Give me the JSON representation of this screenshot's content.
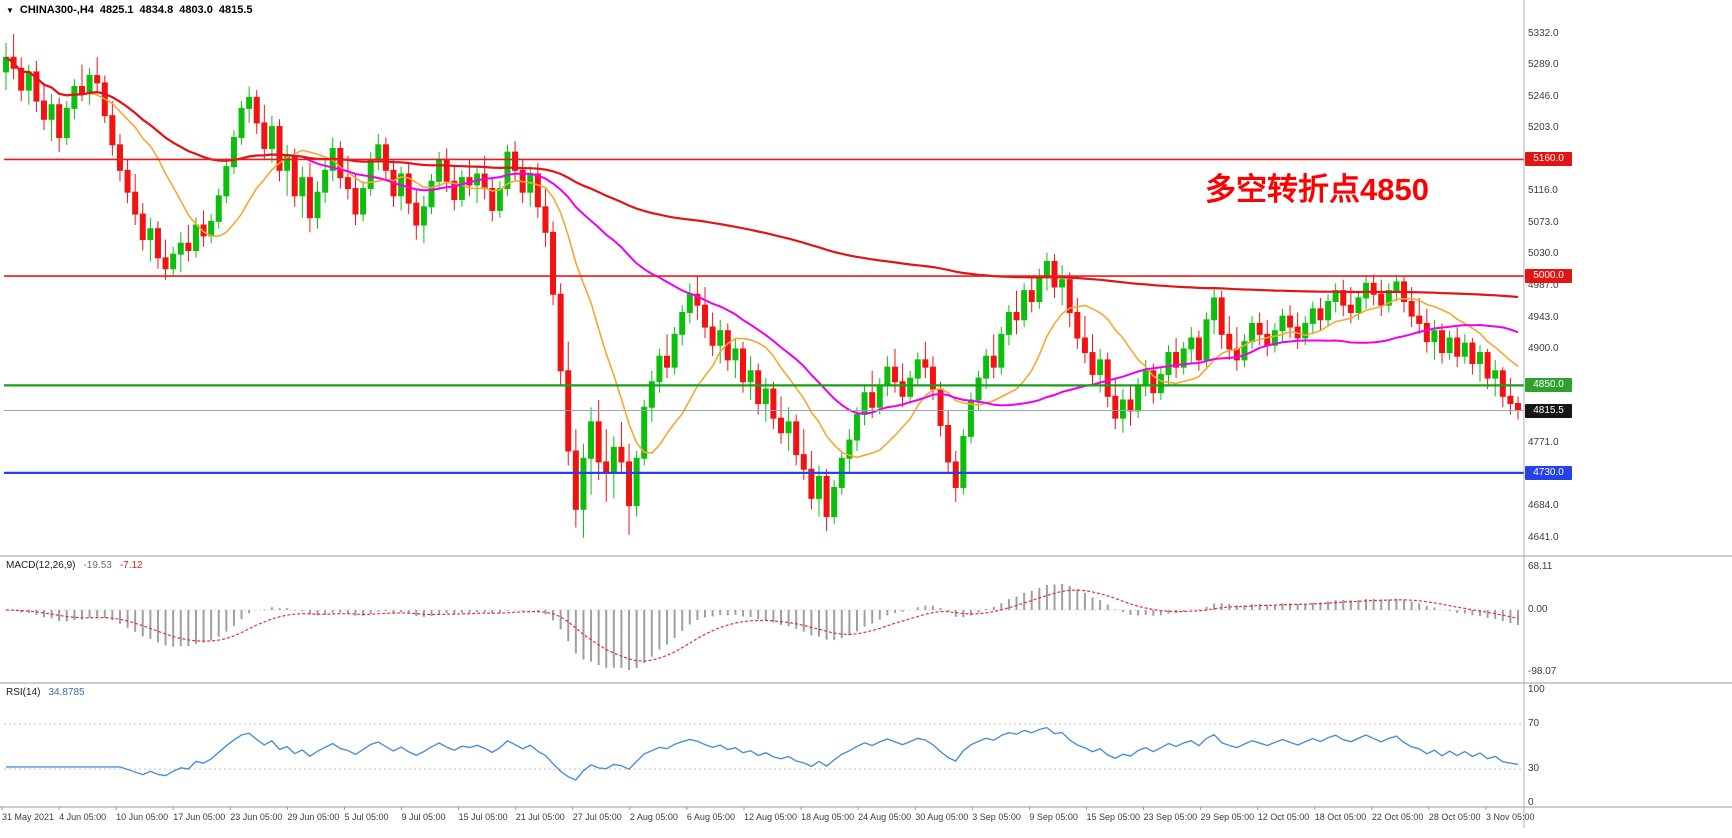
{
  "header": {
    "symbol": "CHINA300-,H4",
    "open": "4825.1",
    "high": "4834.8",
    "low": "4803.0",
    "close": "4815.5"
  },
  "annotation": {
    "text": "多空转折点4850",
    "color": "#FF0000"
  },
  "price_axis": {
    "labels": [
      {
        "text": "5332.0",
        "price": 5332.0
      },
      {
        "text": "5289.0",
        "price": 5289.0
      },
      {
        "text": "5246.0",
        "price": 5246.0
      },
      {
        "text": "5203.0",
        "price": 5203.0
      },
      {
        "text": "5116.0",
        "price": 5116.0
      },
      {
        "text": "5073.0",
        "price": 5073.0
      },
      {
        "text": "5030.0",
        "price": 5030.0
      },
      {
        "text": "4987.0",
        "price": 4987.0
      },
      {
        "text": "4943.0",
        "price": 4943.0
      },
      {
        "text": "4900.0",
        "price": 4900.0
      },
      {
        "text": "4771.0",
        "price": 4771.0
      },
      {
        "text": "4684.0",
        "price": 4684.0
      },
      {
        "text": "4641.0",
        "price": 4641.0
      }
    ],
    "badges": [
      {
        "text": "5160.0",
        "price": 5160.0,
        "bg": "#E21414"
      },
      {
        "text": "5000.0",
        "price": 5000.0,
        "bg": "#E21414"
      },
      {
        "text": "4850.0",
        "price": 4850.0,
        "bg": "#2FA12F"
      },
      {
        "text": "4815.5",
        "price": 4815.5,
        "bg": "#161616"
      },
      {
        "text": "4730.0",
        "price": 4730.0,
        "bg": "#2442E8"
      }
    ]
  },
  "hlines": [
    {
      "price": 5160.0,
      "color": "#F01818",
      "width": 1.6,
      "name": "resistance-line-5160"
    },
    {
      "price": 5000.0,
      "color": "#F01818",
      "width": 1.6,
      "name": "resistance-line-5000"
    },
    {
      "price": 4850.0,
      "color": "#18A018",
      "width": 2.2,
      "name": "pivot-line-4850"
    },
    {
      "price": 4730.0,
      "color": "#2442E8",
      "width": 2.2,
      "name": "support-line-4730"
    },
    {
      "price": 4815.5,
      "color": "#97A7B7",
      "width": 1,
      "name": "current-price-line"
    }
  ],
  "chart_data": {
    "type": "candlestick",
    "symbol": "CHINA300-",
    "timeframe": "H4",
    "y_range": [
      4618,
      5378
    ],
    "x_labels": [
      "31 May 2021",
      "4 Jun 05:00",
      "10 Jun 05:00",
      "17 Jun 05:00",
      "23 Jun 05:00",
      "29 Jun 05:00",
      "5 Jul 05:00",
      "9 Jul 05:00",
      "15 Jul 05:00",
      "21 Jul 05:00",
      "27 Jul 05:00",
      "2 Aug 05:00",
      "6 Aug 05:00",
      "12 Aug 05:00",
      "18 Aug 05:00",
      "24 Aug 05:00",
      "30 Aug 05:00",
      "3 Sep 05:00",
      "9 Sep 05:00",
      "15 Sep 05:00",
      "23 Sep 05:00",
      "29 Sep 05:00",
      "12 Oct 05:00",
      "18 Oct 05:00",
      "22 Oct 05:00",
      "28 Oct 05:00",
      "3 Nov 05:00"
    ],
    "up_color": "#0DBF0D",
    "down_color": "#F31212",
    "moving_averages": [
      {
        "name": "fast",
        "period": 12,
        "color": "#F5A830"
      },
      {
        "name": "medium",
        "period": 40,
        "color": "#EE00EE"
      },
      {
        "name": "slow",
        "period": 200,
        "color": "#E01616"
      }
    ],
    "indicators": [
      {
        "type": "macd",
        "label": "MACD(12,26,9)",
        "values": [
          "-19.53",
          "-7.12"
        ],
        "axis_labels": [
          "68.11",
          "0.00",
          "-98.07"
        ],
        "fast": 12,
        "slow": 26,
        "signal": 9,
        "hist_color": "#9F9F9F",
        "signal_color": "#E83030"
      },
      {
        "type": "rsi",
        "label": "RSI(14)",
        "value": "34.8785",
        "axis_labels": [
          "100",
          "70",
          "30",
          "0"
        ],
        "period": 14,
        "levels": [
          70,
          30
        ],
        "line_color": "#4A90D9"
      }
    ],
    "ohlc": [
      [
        5280,
        5320,
        5255,
        5300
      ],
      [
        5300,
        5332,
        5270,
        5285
      ],
      [
        5285,
        5300,
        5240,
        5255
      ],
      [
        5255,
        5290,
        5235,
        5280
      ],
      [
        5280,
        5295,
        5225,
        5240
      ],
      [
        5240,
        5265,
        5200,
        5215
      ],
      [
        5215,
        5250,
        5185,
        5235
      ],
      [
        5235,
        5245,
        5170,
        5190
      ],
      [
        5190,
        5240,
        5180,
        5230
      ],
      [
        5230,
        5270,
        5215,
        5260
      ],
      [
        5260,
        5290,
        5240,
        5250
      ],
      [
        5250,
        5285,
        5235,
        5275
      ],
      [
        5275,
        5300,
        5250,
        5265
      ],
      [
        5265,
        5275,
        5210,
        5220
      ],
      [
        5220,
        5240,
        5165,
        5180
      ],
      [
        5180,
        5195,
        5130,
        5145
      ],
      [
        5145,
        5160,
        5100,
        5115
      ],
      [
        5115,
        5140,
        5070,
        5085
      ],
      [
        5085,
        5100,
        5035,
        5050
      ],
      [
        5050,
        5080,
        5020,
        5065
      ],
      [
        5065,
        5075,
        5010,
        5025
      ],
      [
        5025,
        5050,
        4995,
        5010
      ],
      [
        5010,
        5040,
        5000,
        5030
      ],
      [
        5030,
        5060,
        5005,
        5045
      ],
      [
        5045,
        5070,
        5020,
        5035
      ],
      [
        5035,
        5080,
        5025,
        5070
      ],
      [
        5070,
        5090,
        5040,
        5055
      ],
      [
        5055,
        5085,
        5045,
        5075
      ],
      [
        5075,
        5120,
        5065,
        5110
      ],
      [
        5110,
        5160,
        5100,
        5150
      ],
      [
        5150,
        5200,
        5140,
        5190
      ],
      [
        5190,
        5240,
        5180,
        5230
      ],
      [
        5230,
        5260,
        5210,
        5245
      ],
      [
        5245,
        5255,
        5195,
        5210
      ],
      [
        5210,
        5235,
        5160,
        5175
      ],
      [
        5175,
        5220,
        5155,
        5205
      ],
      [
        5205,
        5215,
        5130,
        5145
      ],
      [
        5145,
        5180,
        5110,
        5165
      ],
      [
        5165,
        5175,
        5095,
        5110
      ],
      [
        5110,
        5150,
        5080,
        5135
      ],
      [
        5135,
        5155,
        5060,
        5080
      ],
      [
        5080,
        5130,
        5065,
        5115
      ],
      [
        5115,
        5160,
        5100,
        5145
      ],
      [
        5145,
        5190,
        5130,
        5175
      ],
      [
        5175,
        5185,
        5120,
        5135
      ],
      [
        5135,
        5165,
        5105,
        5120
      ],
      [
        5120,
        5140,
        5070,
        5085
      ],
      [
        5085,
        5130,
        5075,
        5120
      ],
      [
        5120,
        5170,
        5110,
        5160
      ],
      [
        5160,
        5195,
        5145,
        5180
      ],
      [
        5180,
        5190,
        5130,
        5145
      ],
      [
        5145,
        5160,
        5095,
        5110
      ],
      [
        5110,
        5150,
        5090,
        5140
      ],
      [
        5140,
        5155,
        5085,
        5100
      ],
      [
        5100,
        5120,
        5050,
        5070
      ],
      [
        5070,
        5110,
        5045,
        5095
      ],
      [
        5095,
        5140,
        5085,
        5130
      ],
      [
        5130,
        5170,
        5120,
        5160
      ],
      [
        5160,
        5175,
        5115,
        5130
      ],
      [
        5130,
        5150,
        5090,
        5105
      ],
      [
        5105,
        5145,
        5095,
        5135
      ],
      [
        5135,
        5160,
        5110,
        5125
      ],
      [
        5125,
        5150,
        5100,
        5140
      ],
      [
        5140,
        5165,
        5105,
        5120
      ],
      [
        5120,
        5135,
        5075,
        5090
      ],
      [
        5090,
        5130,
        5080,
        5120
      ],
      [
        5120,
        5180,
        5110,
        5170
      ],
      [
        5170,
        5185,
        5130,
        5145
      ],
      [
        5145,
        5160,
        5100,
        5115
      ],
      [
        5115,
        5150,
        5095,
        5140
      ],
      [
        5140,
        5155,
        5080,
        5095
      ],
      [
        5095,
        5120,
        5040,
        5060
      ],
      [
        5060,
        5075,
        4960,
        4975
      ],
      [
        4975,
        4990,
        4850,
        4870
      ],
      [
        4870,
        4910,
        4740,
        4760
      ],
      [
        4760,
        4790,
        4655,
        4680
      ],
      [
        4680,
        4770,
        4641,
        4750
      ],
      [
        4750,
        4820,
        4700,
        4800
      ],
      [
        4800,
        4830,
        4720,
        4745
      ],
      [
        4745,
        4790,
        4690,
        4730
      ],
      [
        4730,
        4780,
        4695,
        4765
      ],
      [
        4765,
        4800,
        4730,
        4745
      ],
      [
        4745,
        4770,
        4645,
        4685
      ],
      [
        4685,
        4760,
        4670,
        4750
      ],
      [
        4750,
        4830,
        4740,
        4820
      ],
      [
        4820,
        4870,
        4800,
        4855
      ],
      [
        4855,
        4900,
        4840,
        4890
      ],
      [
        4890,
        4920,
        4860,
        4875
      ],
      [
        4875,
        4930,
        4865,
        4920
      ],
      [
        4920,
        4960,
        4905,
        4950
      ],
      [
        4950,
        4990,
        4935,
        4975
      ],
      [
        4975,
        5000,
        4940,
        4960
      ],
      [
        4960,
        4985,
        4915,
        4930
      ],
      [
        4930,
        4950,
        4890,
        4905
      ],
      [
        4905,
        4940,
        4880,
        4925
      ],
      [
        4925,
        4935,
        4870,
        4885
      ],
      [
        4885,
        4915,
        4860,
        4900
      ],
      [
        4900,
        4910,
        4840,
        4855
      ],
      [
        4855,
        4890,
        4830,
        4870
      ],
      [
        4870,
        4880,
        4810,
        4825
      ],
      [
        4825,
        4860,
        4800,
        4845
      ],
      [
        4845,
        4855,
        4790,
        4805
      ],
      [
        4805,
        4835,
        4770,
        4785
      ],
      [
        4785,
        4820,
        4760,
        4800
      ],
      [
        4800,
        4810,
        4740,
        4755
      ],
      [
        4755,
        4790,
        4720,
        4735
      ],
      [
        4735,
        4760,
        4680,
        4695
      ],
      [
        4695,
        4740,
        4670,
        4725
      ],
      [
        4725,
        4735,
        4650,
        4670
      ],
      [
        4670,
        4720,
        4660,
        4710
      ],
      [
        4710,
        4760,
        4700,
        4750
      ],
      [
        4750,
        4790,
        4730,
        4775
      ],
      [
        4775,
        4820,
        4760,
        4810
      ],
      [
        4810,
        4850,
        4795,
        4840
      ],
      [
        4840,
        4870,
        4805,
        4820
      ],
      [
        4820,
        4860,
        4810,
        4850
      ],
      [
        4850,
        4890,
        4835,
        4875
      ],
      [
        4875,
        4900,
        4840,
        4855
      ],
      [
        4855,
        4880,
        4820,
        4835
      ],
      [
        4835,
        4870,
        4825,
        4860
      ],
      [
        4860,
        4895,
        4850,
        4885
      ],
      [
        4885,
        4910,
        4860,
        4875
      ],
      [
        4875,
        4890,
        4830,
        4845
      ],
      [
        4845,
        4855,
        4780,
        4795
      ],
      [
        4795,
        4815,
        4730,
        4745
      ],
      [
        4745,
        4760,
        4690,
        4710
      ],
      [
        4710,
        4790,
        4700,
        4780
      ],
      [
        4780,
        4840,
        4770,
        4830
      ],
      [
        4830,
        4870,
        4815,
        4860
      ],
      [
        4860,
        4900,
        4845,
        4890
      ],
      [
        4890,
        4920,
        4860,
        4875
      ],
      [
        4875,
        4930,
        4865,
        4920
      ],
      [
        4920,
        4960,
        4905,
        4950
      ],
      [
        4950,
        4980,
        4920,
        4940
      ],
      [
        4940,
        4990,
        4930,
        4980
      ],
      [
        4980,
        5000,
        4950,
        4965
      ],
      [
        4965,
        5010,
        4955,
        5000
      ],
      [
        5000,
        5032,
        4980,
        5020
      ],
      [
        5020,
        5030,
        4970,
        4985
      ],
      [
        4985,
        5015,
        4960,
        4995
      ],
      [
        4995,
        5005,
        4930,
        4950
      ],
      [
        4950,
        4970,
        4900,
        4915
      ],
      [
        4915,
        4945,
        4880,
        4895
      ],
      [
        4895,
        4920,
        4850,
        4865
      ],
      [
        4865,
        4900,
        4840,
        4885
      ],
      [
        4885,
        4895,
        4820,
        4835
      ],
      [
        4835,
        4860,
        4790,
        4805
      ],
      [
        4805,
        4845,
        4785,
        4830
      ],
      [
        4830,
        4850,
        4795,
        4815
      ],
      [
        4815,
        4860,
        4805,
        4850
      ],
      [
        4850,
        4885,
        4835,
        4870
      ],
      [
        4870,
        4880,
        4825,
        4840
      ],
      [
        4840,
        4875,
        4830,
        4865
      ],
      [
        4865,
        4905,
        4850,
        4895
      ],
      [
        4895,
        4915,
        4860,
        4875
      ],
      [
        4875,
        4910,
        4865,
        4900
      ],
      [
        4900,
        4930,
        4880,
        4915
      ],
      [
        4915,
        4925,
        4870,
        4885
      ],
      [
        4885,
        4950,
        4875,
        4940
      ],
      [
        4940,
        4985,
        4920,
        4970
      ],
      [
        4970,
        4980,
        4900,
        4920
      ],
      [
        4920,
        4945,
        4885,
        4900
      ],
      [
        4900,
        4930,
        4870,
        4885
      ],
      [
        4885,
        4920,
        4875,
        4910
      ],
      [
        4910,
        4945,
        4900,
        4935
      ],
      [
        4935,
        4950,
        4905,
        4920
      ],
      [
        4920,
        4940,
        4890,
        4905
      ],
      [
        4905,
        4935,
        4895,
        4925
      ],
      [
        4925,
        4955,
        4910,
        4945
      ],
      [
        4945,
        4960,
        4915,
        4930
      ],
      [
        4930,
        4950,
        4900,
        4915
      ],
      [
        4915,
        4945,
        4905,
        4935
      ],
      [
        4935,
        4965,
        4920,
        4955
      ],
      [
        4955,
        4970,
        4925,
        4940
      ],
      [
        4940,
        4975,
        4930,
        4965
      ],
      [
        4965,
        4990,
        4950,
        4980
      ],
      [
        4980,
        4995,
        4945,
        4960
      ],
      [
        4960,
        4985,
        4935,
        4950
      ],
      [
        4950,
        4980,
        4940,
        4970
      ],
      [
        4970,
        5000,
        4955,
        4990
      ],
      [
        4990,
        5002,
        4960,
        4975
      ],
      [
        4975,
        4995,
        4945,
        4960
      ],
      [
        4960,
        4990,
        4950,
        4980
      ],
      [
        4980,
        5000,
        4965,
        4992
      ],
      [
        4992,
        5000,
        4950,
        4965
      ],
      [
        4965,
        4985,
        4930,
        4945
      ],
      [
        4945,
        4970,
        4920,
        4935
      ],
      [
        4935,
        4955,
        4895,
        4910
      ],
      [
        4910,
        4940,
        4885,
        4925
      ],
      [
        4925,
        4935,
        4880,
        4895
      ],
      [
        4895,
        4925,
        4885,
        4915
      ],
      [
        4915,
        4930,
        4875,
        4890
      ],
      [
        4890,
        4920,
        4880,
        4908
      ],
      [
        4908,
        4915,
        4865,
        4880
      ],
      [
        4880,
        4905,
        4855,
        4895
      ],
      [
        4895,
        4900,
        4845,
        4860
      ],
      [
        4860,
        4885,
        4835,
        4870
      ],
      [
        4870,
        4875,
        4820,
        4835
      ],
      [
        4835,
        4860,
        4810,
        4825
      ],
      [
        4825.1,
        4834.8,
        4803.0,
        4815.5
      ]
    ]
  }
}
